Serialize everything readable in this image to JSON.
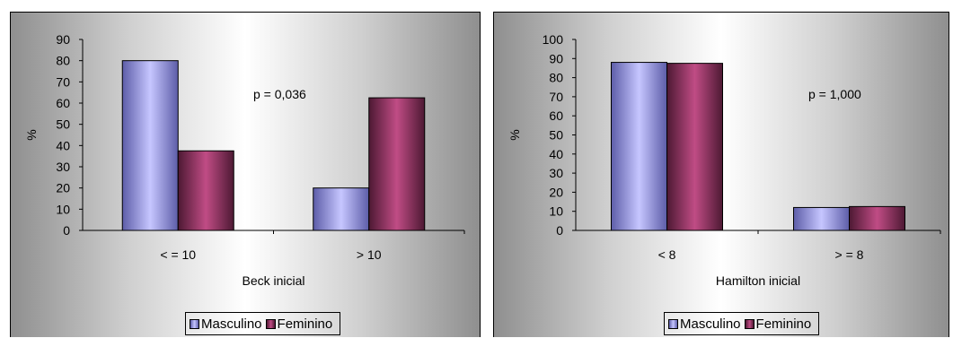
{
  "colors": {
    "masculino": "#9999ff",
    "feminino": "#993366"
  },
  "chart_data": [
    {
      "type": "bar",
      "categories": [
        "< = 10",
        "> 10"
      ],
      "series": [
        {
          "name": "Masculino",
          "values": [
            80,
            20
          ]
        },
        {
          "name": "Feminino",
          "values": [
            37.5,
            62.5
          ]
        }
      ],
      "xlabel": "Beck inicial",
      "ylabel": "%",
      "ylim": [
        0,
        90
      ],
      "yticks": [
        0,
        10,
        20,
        30,
        40,
        50,
        60,
        70,
        80,
        90
      ],
      "annotation": "p = 0,036",
      "legend": [
        "Masculino",
        "Feminino"
      ],
      "legend_position": "bottom"
    },
    {
      "type": "bar",
      "categories": [
        "< 8",
        "> = 8"
      ],
      "series": [
        {
          "name": "Masculino",
          "values": [
            88,
            12
          ]
        },
        {
          "name": "Feminino",
          "values": [
            87.5,
            12.5
          ]
        }
      ],
      "xlabel": "Hamilton inicial",
      "ylabel": "%",
      "ylim": [
        0,
        100
      ],
      "yticks": [
        0,
        10,
        20,
        30,
        40,
        50,
        60,
        70,
        80,
        90,
        100
      ],
      "annotation": "p = 1,000",
      "legend": [
        "Masculino",
        "Feminino"
      ],
      "legend_position": "bottom"
    }
  ]
}
